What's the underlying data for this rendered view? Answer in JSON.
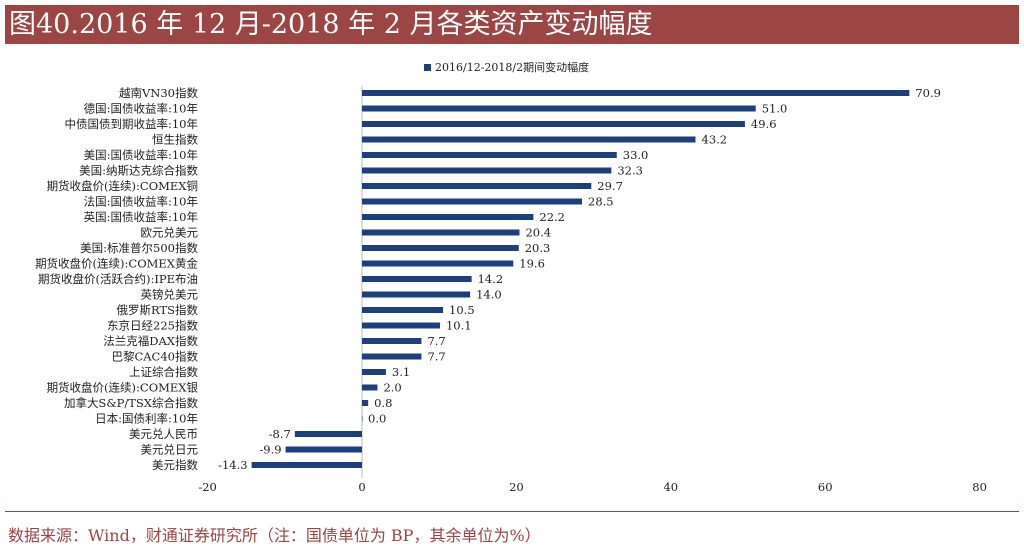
{
  "title": "图40.2016 年 12 月-2018 年 2 月各类资产变动幅度",
  "source": "数据来源：Wind，财通证券研究所（注：国债单位为 BP，其余单位为%）",
  "chart_data": {
    "type": "bar",
    "orientation": "horizontal",
    "categories": [
      "越南VN30指数",
      "德国:国债收益率:10年",
      "中债国债到期收益率:10年",
      "恒生指数",
      "美国:国债收益率:10年",
      "美国:纳斯达克综合指数",
      "期货收盘价(连续):COMEX铜",
      "法国:国债收益率:10年",
      "英国:国债收益率:10年",
      "欧元兑美元",
      "美国:标准普尔500指数",
      "期货收盘价(连续):COMEX黄金",
      "期货收盘价(活跃合约):IPE布油",
      "英镑兑美元",
      "俄罗斯RTS指数",
      "东京日经225指数",
      "法兰克福DAX指数",
      "巴黎CAC40指数",
      "上证综合指数",
      "期货收盘价(连续):COMEX银",
      "加拿大S&P/TSX综合指数",
      "日本:国债利率:10年",
      "美元兑人民币",
      "美元兑日元",
      "美元指数"
    ],
    "series": [
      {
        "name": "2016/12-2018/2期间变动幅度",
        "values": [
          70.9,
          51.0,
          49.6,
          43.2,
          33.0,
          32.3,
          29.7,
          28.5,
          22.2,
          20.4,
          20.3,
          19.6,
          14.2,
          14.0,
          10.5,
          10.1,
          7.7,
          7.7,
          3.1,
          2.0,
          0.8,
          0.0,
          -8.7,
          -9.9,
          -14.3
        ],
        "color": "#1f3e7c"
      }
    ],
    "xlim": [
      -20,
      80
    ],
    "xticks": [
      "-20",
      "0",
      "20",
      "40",
      "60",
      "80"
    ],
    "legend": "top",
    "grid": false
  }
}
